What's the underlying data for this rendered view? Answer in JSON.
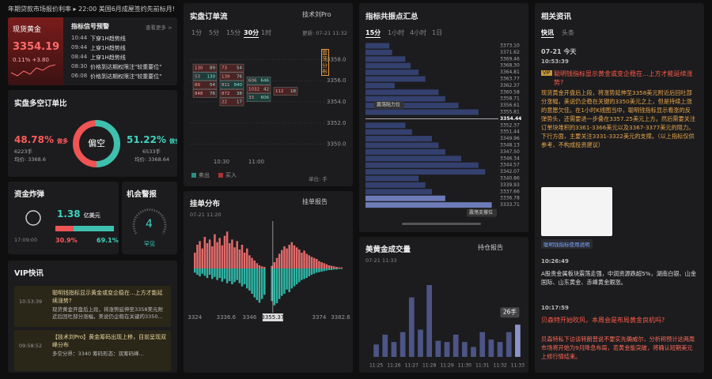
{
  "ticker": {
    "text": "年期贷款市场报价利率",
    "event": "22:00 美国6月成屋签约先前标月!"
  },
  "quote": {
    "name": "现货黄金",
    "price": "3354.19",
    "pct": "0.11%",
    "chg": "+3.80"
  },
  "signals": {
    "title": "指标信号预警",
    "more": "查看更多 >",
    "items": [
      [
        "10:44",
        "下穿1H趋势线"
      ],
      [
        "09:44",
        "上穿1H趋势线"
      ],
      [
        "08:44",
        "上穿1H趋势线"
      ],
      [
        "08:30",
        "价格到达期权限注\"较重要位\""
      ],
      [
        "06:08",
        "价格到达期权限注\"较重要位\""
      ]
    ]
  },
  "ratio": {
    "title": "实盘多空订单比",
    "center": "偏空",
    "long": {
      "pct": {
        "value": 48.78,
        "label": "48.78%"
      },
      "side": "做多",
      "lots": "6223手",
      "avg": "均价: 3368.6"
    },
    "short": {
      "pct": {
        "value": 51.22,
        "label": "51.22%"
      },
      "side": "做空",
      "lots": "6533手",
      "avg": "均价: 3368.64"
    }
  },
  "fund": {
    "title": "资金炸弹",
    "amount": "1.38",
    "unit": "亿美元",
    "time": "17:09:00",
    "sell": {
      "value": 30.9,
      "label": "30.9%"
    },
    "buy": {
      "value": 69.1,
      "label": "69.1%"
    }
  },
  "alert": {
    "title": "机会警报",
    "level": 4,
    "rarity": "罕见"
  },
  "vip": {
    "title": "VIP快讯",
    "items": [
      {
        "time": "10:53:39",
        "title": "聪明钱指标显示黄金或变企稳在...上方才能延续涨势?",
        "body": "现货黄金开盘后上段，将涨势延伸至3358美元附近后回吐部分涨幅，美说仍企稳在关键的3350..."
      },
      {
        "time": "09:58:52",
        "title": "【技术刘Pro】黄金筹码出现上移，目前呈现双峰分布",
        "body": "多空分界：3340 筹码形态：双筹码峰..."
      }
    ]
  },
  "order_flow": {
    "title": "实盘订单流",
    "report": "技术刘Pro",
    "tabs": [
      "1分",
      "5分",
      "15分",
      "30分",
      "1时"
    ],
    "active": 3,
    "updated": "更新: 07-21 11:32",
    "vertical": "震荡分布",
    "ylim": [
      3349,
      3359
    ],
    "yticks": [
      {
        "value": 3358,
        "label": "3358.0"
      },
      {
        "value": 3356,
        "label": "3356.0"
      },
      {
        "value": 3354,
        "label": "3354.0"
      },
      {
        "value": 3352,
        "label": "3352.0"
      },
      {
        "value": 3350,
        "label": "3350.0"
      }
    ],
    "xticks": [
      "10:30",
      "11:00"
    ],
    "legend": [
      "卖出",
      "买入"
    ],
    "unit": "单位: 手",
    "columns": [
      [
        {
          "price": 3357.2,
          "sell": 130,
          "buy": 89
        },
        {
          "price": 3356.4,
          "sell": 53,
          "buy": 130
        },
        {
          "price": 3355.6,
          "sell": 89,
          "buy": 54
        },
        {
          "price": 3354.8,
          "sell": 848,
          "buy": 76
        }
      ],
      [
        {
          "price": 3357.2,
          "sell": 73,
          "buy": 54
        },
        {
          "price": 3356.4,
          "sell": 139,
          "buy": 76
        },
        {
          "price": 3355.6,
          "sell": 811,
          "buy": 940
        },
        {
          "price": 3354.8,
          "sell": 872,
          "buy": 38
        },
        {
          "price": 3354.0,
          "sell": 22,
          "buy": 17
        }
      ],
      [
        {
          "price": 3356.0,
          "sell": 606,
          "buy": 646
        },
        {
          "price": 3355.2,
          "sell": 1032,
          "buy": 42
        },
        {
          "price": 3354.4,
          "sell": 33,
          "buy": 606
        }
      ],
      [
        {
          "price": 3355.0,
          "sell": 112,
          "buy": 18
        }
      ]
    ]
  },
  "order_book": {
    "title": "挂单分布",
    "time": "07-21 11:20",
    "report": "挂单报告",
    "xlim": [
      3322,
      3385
    ],
    "xticks": [
      3324,
      3336.6,
      3346,
      3355.37,
      3374,
      3382.6
    ],
    "current": 3355.37,
    "ylim": [
      0,
      75
    ],
    "x": [
      3324,
      3325,
      3326,
      3327,
      3328,
      3329,
      3330,
      3331,
      3332,
      3333,
      3334,
      3335,
      3336,
      3337,
      3338,
      3339,
      3340,
      3341,
      3342,
      3343,
      3344,
      3345,
      3346,
      3347,
      3348,
      3349,
      3350,
      3351,
      3352,
      3353,
      3354,
      3355,
      3356,
      3357,
      3358,
      3359,
      3360,
      3361,
      3362,
      3363,
      3364,
      3365,
      3366,
      3367,
      3368,
      3369,
      3370,
      3371,
      3372,
      3373,
      3374,
      3375,
      3376,
      3377,
      3378,
      3379,
      3380,
      3381,
      3382,
      3383
    ],
    "bids": [
      30,
      45,
      52,
      38,
      60,
      48,
      55,
      42,
      65,
      50,
      58,
      44,
      62,
      70,
      48,
      55,
      40,
      52,
      36,
      45,
      30,
      38,
      25,
      20,
      15,
      10,
      6,
      4,
      3,
      0,
      0,
      5,
      12,
      20,
      28,
      35,
      42,
      38,
      45,
      50,
      44,
      40,
      36,
      30,
      34,
      28,
      25,
      22,
      20,
      18,
      14,
      12,
      10,
      8,
      6,
      5,
      4,
      3,
      2,
      2
    ],
    "asks": [
      8,
      12,
      15,
      10,
      14,
      18,
      12,
      20,
      16,
      22,
      18,
      25,
      20,
      28,
      24,
      30,
      26,
      22,
      28,
      34,
      30,
      38,
      42,
      48,
      55,
      60,
      65,
      58,
      50,
      0,
      0,
      62,
      70,
      66,
      58,
      52,
      48,
      40,
      45,
      38,
      34,
      30,
      26,
      22,
      20,
      18,
      15,
      12,
      10,
      8,
      7,
      6,
      5,
      4,
      3,
      3,
      2,
      2,
      1,
      1
    ]
  },
  "resonance": {
    "title": "指标共振点汇总",
    "tabs": [
      "15分",
      "1小时",
      "4小时",
      "1日"
    ],
    "active": 0,
    "xlim": [
      0,
      100
    ],
    "resist_label": "震荡阻力位",
    "support_label": "震荡支撑位",
    "current": "3354.44",
    "levels": [
      [
        "3373.10",
        18
      ],
      [
        "3371.62",
        20
      ],
      [
        "3369.46",
        30
      ],
      [
        "3368.30",
        34
      ],
      [
        "3364.81",
        40
      ],
      [
        "3363.77",
        45
      ],
      [
        "3362.37",
        22
      ],
      [
        "3360.58",
        55
      ],
      [
        "3358.71",
        60
      ],
      [
        "3356.61",
        70
      ],
      [
        "3355.81",
        85
      ],
      [
        "3352.37",
        30
      ],
      [
        "3351.44",
        35
      ],
      [
        "3349.96",
        50
      ],
      [
        "3348.13",
        55
      ],
      [
        "3347.50",
        60
      ],
      [
        "3346.34",
        72
      ],
      [
        "3344.57",
        85
      ],
      [
        "3342.07",
        90
      ],
      [
        "3340.86",
        40
      ],
      [
        "3339.93",
        45
      ],
      [
        "3337.66",
        50
      ],
      [
        "3336.78",
        60
      ],
      [
        "3333.71",
        95
      ]
    ]
  },
  "volume": {
    "title": "美黄金成交量",
    "time": "07-21 11:33",
    "report": "持仓报告",
    "tooltip": "26手",
    "ylim": [
      0,
      65
    ],
    "categories": [
      "11:25",
      null,
      "11:26",
      null,
      "11:27",
      null,
      "11:28",
      null,
      "11:29",
      null,
      "11:30",
      null,
      "11:31",
      null,
      "11:32",
      null,
      "11:33"
    ],
    "values": [
      10,
      18,
      12,
      20,
      48,
      22,
      58,
      13,
      12,
      18,
      12,
      8,
      20,
      14,
      12,
      20,
      26
    ]
  },
  "news": {
    "title": "相关资讯",
    "tabs": [
      "快讯",
      "头条"
    ],
    "date": "07-21 今天",
    "items": [
      {
        "time": "10:53:39",
        "badge": "VIP",
        "title": "聪明钱指标显示黄金或变企稳在...上方才能延续涨势?",
        "body": "现货黄金开盘后上段，将涨势延伸至3358美元附近后回吐部分涨幅，美说仍企稳在关键的3350美元之上，但是持续上涨的意愿欠佳。在1小时K线图当中，聪明钱指标显示看涨的反弹势头，还需要进一步叠在3357.25美元上方。然后需要关注订单块堆积的3361-3366美元以及3367-3377美元的阻力。下行方面，主要关注3331-3322美元的支撑。（以上指标仅供参考，不构成投资建议）",
        "caption": "聪明钱指标使用说明"
      },
      {
        "time": "10:26:49",
        "body": "A股贵金属板块震荡走强，中润资源跌超5%，湖南白银、山金国际、山东黄金、赤峰黄金跟涨。"
      },
      {
        "time": "10:17:59",
        "title": "贝森特开始吹风，本周会是布局黄金良机吗?",
        "body": "贝森特私下访谈转朗普说不要实先确威尔，分析称预计这两周市场将开始为9月降息布局，若黄金能突破，将确认短期美元上修行情结束。"
      }
    ]
  }
}
